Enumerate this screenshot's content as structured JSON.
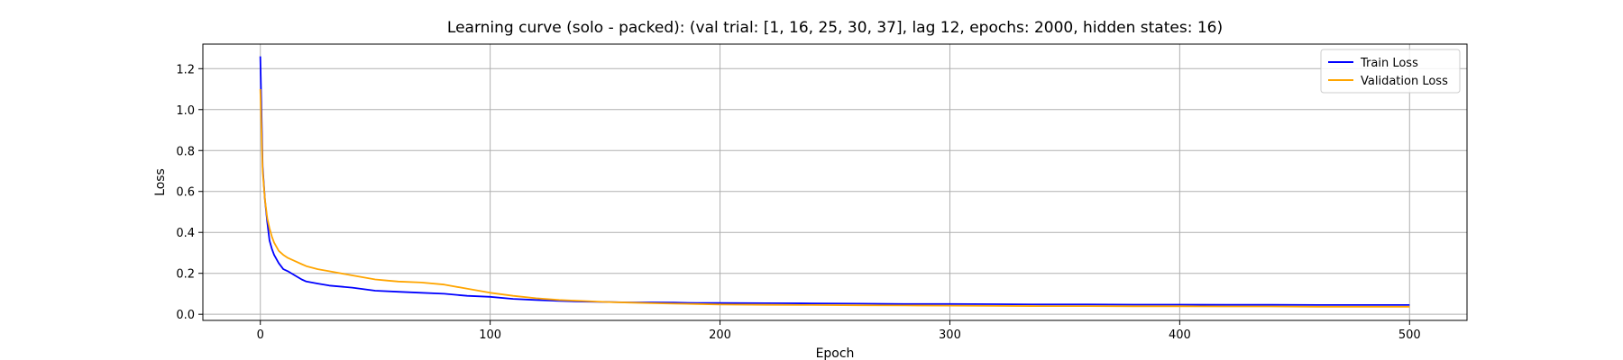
{
  "chart_data": {
    "type": "line",
    "title": "Learning curve (solo - packed): (val trial: [1, 16, 25, 30, 37], lag 12, epochs: 2000, hidden states: 16)",
    "xlabel": "Epoch",
    "ylabel": "Loss",
    "xlim": [
      -25,
      525
    ],
    "ylim": [
      -0.03,
      1.32
    ],
    "xticks": [
      0,
      100,
      200,
      300,
      400,
      500
    ],
    "yticks": [
      0.0,
      0.2,
      0.4,
      0.6,
      0.8,
      1.0,
      1.2
    ],
    "xtick_labels": [
      "0",
      "100",
      "200",
      "300",
      "400",
      "500"
    ],
    "ytick_labels": [
      "0.0",
      "0.2",
      "0.4",
      "0.6",
      "0.8",
      "1.0",
      "1.2"
    ],
    "grid": true,
    "legend_position": "top-right",
    "series": [
      {
        "name": "Train Loss",
        "color": "#0000ff",
        "x": [
          0,
          1,
          2,
          3,
          4,
          5,
          6,
          8,
          10,
          12,
          15,
          18,
          20,
          25,
          30,
          40,
          50,
          60,
          70,
          80,
          90,
          100,
          110,
          120,
          130,
          140,
          150,
          160,
          170,
          180,
          190,
          200,
          220,
          240,
          260,
          280,
          300,
          320,
          340,
          360,
          380,
          400,
          420,
          440,
          460,
          480,
          500
        ],
        "y": [
          1.26,
          0.72,
          0.56,
          0.45,
          0.36,
          0.32,
          0.29,
          0.25,
          0.22,
          0.21,
          0.19,
          0.17,
          0.16,
          0.15,
          0.14,
          0.13,
          0.115,
          0.11,
          0.105,
          0.1,
          0.09,
          0.085,
          0.075,
          0.07,
          0.065,
          0.062,
          0.06,
          0.058,
          0.058,
          0.057,
          0.055,
          0.055,
          0.054,
          0.053,
          0.052,
          0.05,
          0.05,
          0.049,
          0.048,
          0.048,
          0.047,
          0.047,
          0.046,
          0.046,
          0.045,
          0.045,
          0.045
        ]
      },
      {
        "name": "Validation Loss",
        "color": "#ffa500",
        "x": [
          0,
          1,
          2,
          3,
          4,
          5,
          6,
          8,
          10,
          12,
          15,
          18,
          20,
          25,
          30,
          40,
          50,
          55,
          60,
          70,
          80,
          90,
          100,
          110,
          120,
          130,
          140,
          150,
          160,
          170,
          180,
          190,
          200,
          220,
          240,
          260,
          280,
          300,
          320,
          340,
          360,
          380,
          400,
          420,
          440,
          460,
          480,
          500
        ],
        "y": [
          1.1,
          0.7,
          0.56,
          0.47,
          0.42,
          0.38,
          0.35,
          0.31,
          0.29,
          0.275,
          0.26,
          0.245,
          0.235,
          0.22,
          0.21,
          0.19,
          0.17,
          0.165,
          0.16,
          0.155,
          0.145,
          0.125,
          0.105,
          0.09,
          0.078,
          0.07,
          0.065,
          0.06,
          0.057,
          0.054,
          0.052,
          0.05,
          0.048,
          0.046,
          0.045,
          0.044,
          0.043,
          0.042,
          0.041,
          0.04,
          0.04,
          0.039,
          0.039,
          0.038,
          0.038,
          0.037,
          0.037,
          0.037
        ]
      }
    ]
  }
}
